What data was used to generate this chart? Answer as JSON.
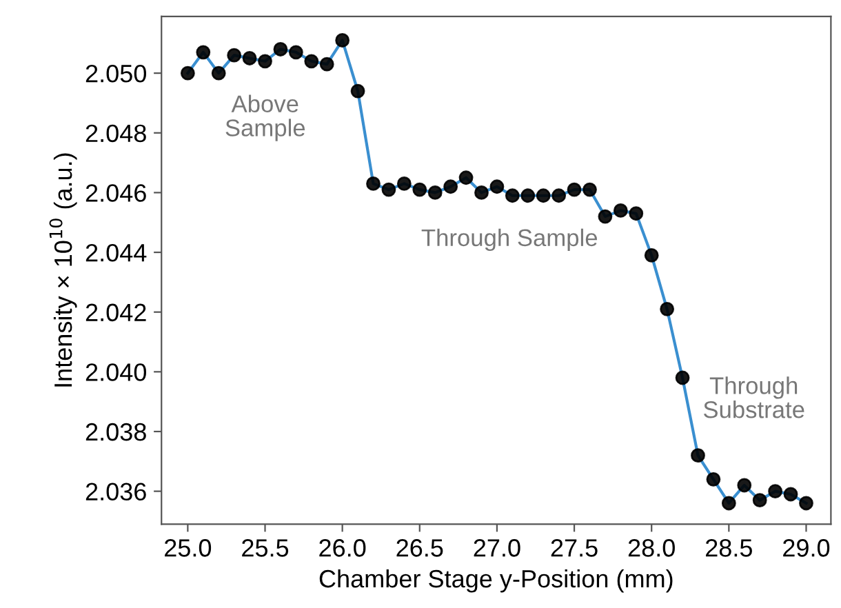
{
  "chart_data": {
    "type": "line",
    "xlabel": "Chamber Stage y-Position (mm)",
    "ylabel": "Intensity × 10$^{10}$ (a.u.)",
    "x": [
      25.0,
      25.1,
      25.2,
      25.3,
      25.4,
      25.5,
      25.6,
      25.7,
      25.8,
      25.9,
      26.0,
      26.1,
      26.2,
      26.3,
      26.4,
      26.5,
      26.6,
      26.7,
      26.8,
      26.9,
      27.0,
      27.1,
      27.2,
      27.3,
      27.4,
      27.5,
      27.6,
      27.7,
      27.8,
      27.9,
      28.0,
      28.1,
      28.2,
      28.3,
      28.4,
      28.5,
      28.6,
      28.7,
      28.8,
      28.9,
      29.0
    ],
    "series": [
      {
        "color": "#3a8fd0",
        "values": [
          2.05,
          2.0507,
          2.05,
          2.0506,
          2.0505,
          2.0504,
          2.0508,
          2.0507,
          2.0504,
          2.0503,
          2.0511,
          2.0494,
          2.0463,
          2.0461,
          2.0463,
          2.0461,
          2.046,
          2.0462,
          2.0465,
          2.046,
          2.0462,
          2.0459,
          2.0459,
          2.0459,
          2.0459,
          2.0461,
          2.0461,
          2.0452,
          2.0454,
          2.0453,
          2.0439,
          2.0421,
          2.0398,
          2.0372,
          2.0364,
          2.0356,
          2.0362,
          2.0357,
          2.036,
          2.0359,
          2.0356
        ]
      }
    ],
    "marker": "circle",
    "line_style": "solid",
    "grid": false,
    "xlim": [
      24.83,
      29.16
    ],
    "ylim": [
      2.0349,
      2.0519
    ],
    "xticks": [
      {
        "value": 25.0,
        "label": "25.0"
      },
      {
        "value": 25.5,
        "label": "25.5"
      },
      {
        "value": 26.0,
        "label": "26.0"
      },
      {
        "value": 26.5,
        "label": "26.5"
      },
      {
        "value": 27.0,
        "label": "27.0"
      },
      {
        "value": 27.5,
        "label": "27.5"
      },
      {
        "value": 28.0,
        "label": "28.0"
      },
      {
        "value": 28.5,
        "label": "28.5"
      },
      {
        "value": 29.0,
        "label": "29.0"
      }
    ],
    "yticks": [
      {
        "value": 2.036,
        "label": "2.036"
      },
      {
        "value": 2.038,
        "label": "2.038"
      },
      {
        "value": 2.04,
        "label": "2.040"
      },
      {
        "value": 2.042,
        "label": "2.042"
      },
      {
        "value": 2.044,
        "label": "2.044"
      },
      {
        "value": 2.046,
        "label": "2.046"
      },
      {
        "value": 2.048,
        "label": "2.048"
      },
      {
        "value": 2.05,
        "label": "2.050"
      }
    ],
    "annotations": [
      "Above\nSample",
      "Through Sample",
      "Through\nSubstrate"
    ]
  }
}
